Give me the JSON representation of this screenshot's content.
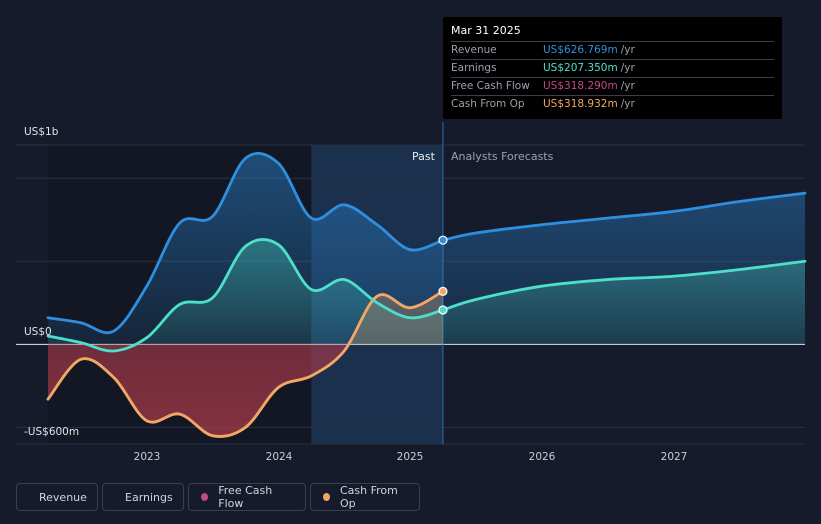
{
  "chart_data": {
    "type": "line",
    "y_axis_labels": [
      "US$1b",
      "US$0",
      "-US$600m"
    ],
    "ylim": [
      -600,
      1200
    ],
    "x_ticks": [
      "2023",
      "2024",
      "2025",
      "2026",
      "2027"
    ],
    "sections": {
      "past": "Past",
      "forecast": "Analysts Forecasts"
    },
    "series": [
      {
        "name": "Revenue",
        "color": "#2e8fe0",
        "points": [
          [
            2022.25,
            160
          ],
          [
            2022.5,
            130
          ],
          [
            2022.75,
            80
          ],
          [
            2023.0,
            350
          ],
          [
            2023.25,
            730
          ],
          [
            2023.5,
            770
          ],
          [
            2023.75,
            1120
          ],
          [
            2024.0,
            1090
          ],
          [
            2024.25,
            760
          ],
          [
            2024.5,
            840
          ],
          [
            2024.75,
            720
          ],
          [
            2025.0,
            570
          ],
          [
            2025.25,
            627
          ]
        ],
        "forecast": [
          [
            2025.25,
            627
          ],
          [
            2025.5,
            670
          ],
          [
            2026.0,
            720
          ],
          [
            2026.5,
            760
          ],
          [
            2027.0,
            800
          ],
          [
            2027.5,
            860
          ],
          [
            2028.0,
            910
          ]
        ]
      },
      {
        "name": "Earnings",
        "color": "#4ce0c8",
        "points": [
          [
            2022.25,
            50
          ],
          [
            2022.5,
            10
          ],
          [
            2022.75,
            -40
          ],
          [
            2023.0,
            40
          ],
          [
            2023.25,
            240
          ],
          [
            2023.5,
            280
          ],
          [
            2023.75,
            590
          ],
          [
            2024.0,
            600
          ],
          [
            2024.25,
            330
          ],
          [
            2024.5,
            390
          ],
          [
            2024.75,
            250
          ],
          [
            2025.0,
            160
          ],
          [
            2025.25,
            207
          ]
        ],
        "forecast": [
          [
            2025.25,
            207
          ],
          [
            2025.5,
            270
          ],
          [
            2026.0,
            350
          ],
          [
            2026.5,
            390
          ],
          [
            2027.0,
            410
          ],
          [
            2027.5,
            450
          ],
          [
            2028.0,
            500
          ]
        ]
      },
      {
        "name": "Free Cash Flow",
        "color": "#c24a7e",
        "points": [
          [
            2022.25,
            -330
          ],
          [
            2022.5,
            -90
          ],
          [
            2022.75,
            -200
          ],
          [
            2023.0,
            -460
          ],
          [
            2023.25,
            -420
          ],
          [
            2023.5,
            -550
          ],
          [
            2023.75,
            -500
          ],
          [
            2024.0,
            -260
          ],
          [
            2024.25,
            -190
          ],
          [
            2024.5,
            -40
          ],
          [
            2024.75,
            290
          ],
          [
            2025.0,
            220
          ],
          [
            2025.25,
            318
          ]
        ]
      },
      {
        "name": "Cash From Op",
        "color": "#f0a865",
        "points": [
          [
            2022.25,
            -330
          ],
          [
            2022.5,
            -90
          ],
          [
            2022.75,
            -200
          ],
          [
            2023.0,
            -460
          ],
          [
            2023.25,
            -420
          ],
          [
            2023.5,
            -550
          ],
          [
            2023.75,
            -500
          ],
          [
            2024.0,
            -260
          ],
          [
            2024.25,
            -190
          ],
          [
            2024.5,
            -40
          ],
          [
            2024.75,
            290
          ],
          [
            2025.0,
            220
          ],
          [
            2025.25,
            319
          ]
        ]
      }
    ]
  },
  "tooltip": {
    "date": "Mar 31 2025",
    "rows": [
      {
        "label": "Revenue",
        "value": "US$626.769m",
        "unit": "/yr",
        "color": "#2e8fe0"
      },
      {
        "label": "Earnings",
        "value": "US$207.350m",
        "unit": "/yr",
        "color": "#4ce0c8"
      },
      {
        "label": "Free Cash Flow",
        "value": "US$318.290m",
        "unit": "/yr",
        "color": "#c24a7e"
      },
      {
        "label": "Cash From Op",
        "value": "US$318.932m",
        "unit": "/yr",
        "color": "#f0a865"
      }
    ]
  },
  "legend": [
    {
      "label": "Revenue",
      "color": "#2e8fe0"
    },
    {
      "label": "Earnings",
      "color": "#4ce0c8"
    },
    {
      "label": "Free Cash Flow",
      "color": "#c24a7e"
    },
    {
      "label": "Cash From Op",
      "color": "#f0a865"
    }
  ]
}
